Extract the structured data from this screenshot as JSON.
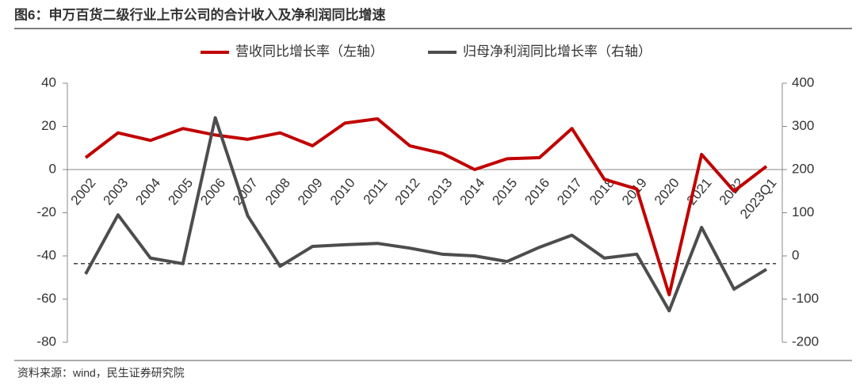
{
  "chart_data": {
    "type": "line",
    "title": "图6：申万百货二级行业上市公司的合计收入及净利润同比增速",
    "source": "资料来源：wind，民生证券研究院",
    "categories": [
      "2002",
      "2003",
      "2004",
      "2005",
      "2006",
      "2007",
      "2008",
      "2009",
      "2010",
      "2011",
      "2012",
      "2013",
      "2014",
      "2015",
      "2016",
      "2017",
      "2018",
      "2019",
      "2020",
      "2021",
      "2022",
      "2023Q1"
    ],
    "series": [
      {
        "name": "营收同比增长率（左轴）",
        "color": "#c00000",
        "axis": "y",
        "values": [
          5.5,
          17,
          13.5,
          19,
          16,
          14,
          17,
          11,
          21.5,
          23.5,
          11,
          7.5,
          0,
          5,
          5.5,
          19,
          -4.5,
          -9,
          -58,
          7,
          -10,
          1.5
        ]
      },
      {
        "name": "归母净利润同比增长率（右轴）",
        "color": "#4d4d4d",
        "axis": "y2",
        "values": [
          -42,
          95,
          -5,
          -18,
          320,
          93,
          -24,
          22,
          26,
          29,
          18,
          4,
          0,
          -13,
          20,
          48,
          -5,
          4,
          -127,
          66,
          -77,
          -31
        ]
      }
    ],
    "ylim": [
      -80,
      40
    ],
    "yticks": [
      -80,
      -60,
      -40,
      -20,
      0,
      20,
      40
    ],
    "y2lim": [
      -200,
      400
    ],
    "y2ticks": [
      -200,
      -100,
      0,
      100,
      200,
      300,
      400
    ],
    "reference_line": {
      "value": -18,
      "axis": "y2"
    },
    "legend": "top"
  }
}
